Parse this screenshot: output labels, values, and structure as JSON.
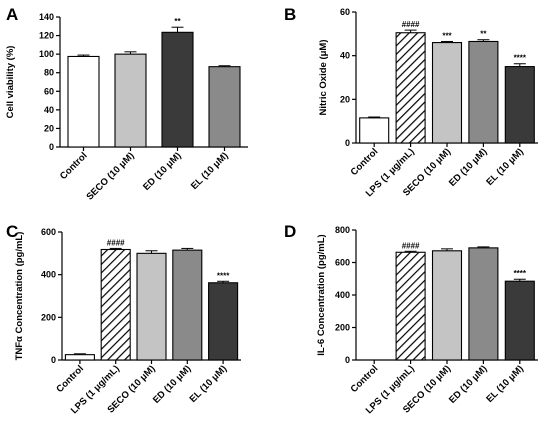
{
  "figure": {
    "panel_letters": [
      "A",
      "B",
      "C",
      "D"
    ]
  },
  "colors": {
    "white": "#ffffff",
    "light_gray": "#c4c4c4",
    "dark_gray": "#3a3a3a",
    "mid_gray": "#8a8a8a",
    "hatch": "hatch"
  },
  "chart_data": [
    {
      "type": "bar",
      "panel": "A",
      "ylabel": "Cell viability (%)",
      "ylim": [
        0,
        140
      ],
      "yticks": [
        0,
        20,
        40,
        60,
        80,
        100,
        120,
        140
      ],
      "categories": [
        "Control",
        "SECO (10 μM)",
        "ED (10 μM)",
        "EL (10 μM)"
      ],
      "values": [
        97.5,
        100,
        123.5,
        86.5
      ],
      "errors": [
        1.5,
        2.5,
        5.5,
        1
      ],
      "annotations": [
        "",
        "",
        "**",
        ""
      ],
      "fills": [
        "white",
        "light_gray",
        "dark_gray",
        "mid_gray"
      ],
      "grid": false
    },
    {
      "type": "bar",
      "panel": "B",
      "ylabel": "Nitric Oxide (μM)",
      "ylim": [
        0,
        60
      ],
      "yticks": [
        0,
        20,
        40,
        60
      ],
      "categories": [
        "Control",
        "LPS (1 μg/mL)",
        "SECO (10 μM)",
        "ED (10 μM)",
        "EL (10 μM)"
      ],
      "values": [
        11.5,
        50.5,
        46,
        46.5,
        35
      ],
      "errors": [
        0.4,
        1.2,
        0.5,
        0.8,
        1.3
      ],
      "annotations": [
        "",
        "####",
        "***",
        "**",
        "****"
      ],
      "fills": [
        "white",
        "hatch",
        "light_gray",
        "mid_gray",
        "dark_gray"
      ],
      "grid": false
    },
    {
      "type": "bar",
      "panel": "C",
      "ylabel": "TNFα Concentration (pg/mL)",
      "ylim": [
        0,
        600
      ],
      "yticks": [
        0,
        200,
        400,
        600
      ],
      "categories": [
        "Control",
        "LPS (1 μg/mL)",
        "SECO (10 μM)",
        "ED (10 μM)",
        "EL (10 μM)"
      ],
      "values": [
        25,
        518,
        500,
        515,
        362
      ],
      "errors": [
        4,
        5,
        12,
        8,
        7
      ],
      "annotations": [
        "",
        "####",
        "",
        "",
        "****"
      ],
      "fills": [
        "white",
        "hatch",
        "light_gray",
        "mid_gray",
        "dark_gray"
      ],
      "grid": false
    },
    {
      "type": "bar",
      "panel": "D",
      "ylabel": "IL-6 Concentration (pg/mL)",
      "ylim": [
        0,
        800
      ],
      "yticks": [
        0,
        200,
        400,
        600,
        800
      ],
      "categories": [
        "Control",
        "LPS (1 μg/mL)",
        "SECO (10 μM)",
        "ED (10 μM)",
        "EL (10 μM)"
      ],
      "values": [
        0,
        663,
        672,
        690,
        485
      ],
      "errors": [
        0,
        6,
        12,
        6,
        12
      ],
      "annotations": [
        "",
        "####",
        "",
        "",
        "****"
      ],
      "fills": [
        "white",
        "hatch",
        "light_gray",
        "mid_gray",
        "dark_gray"
      ],
      "grid": false
    }
  ]
}
